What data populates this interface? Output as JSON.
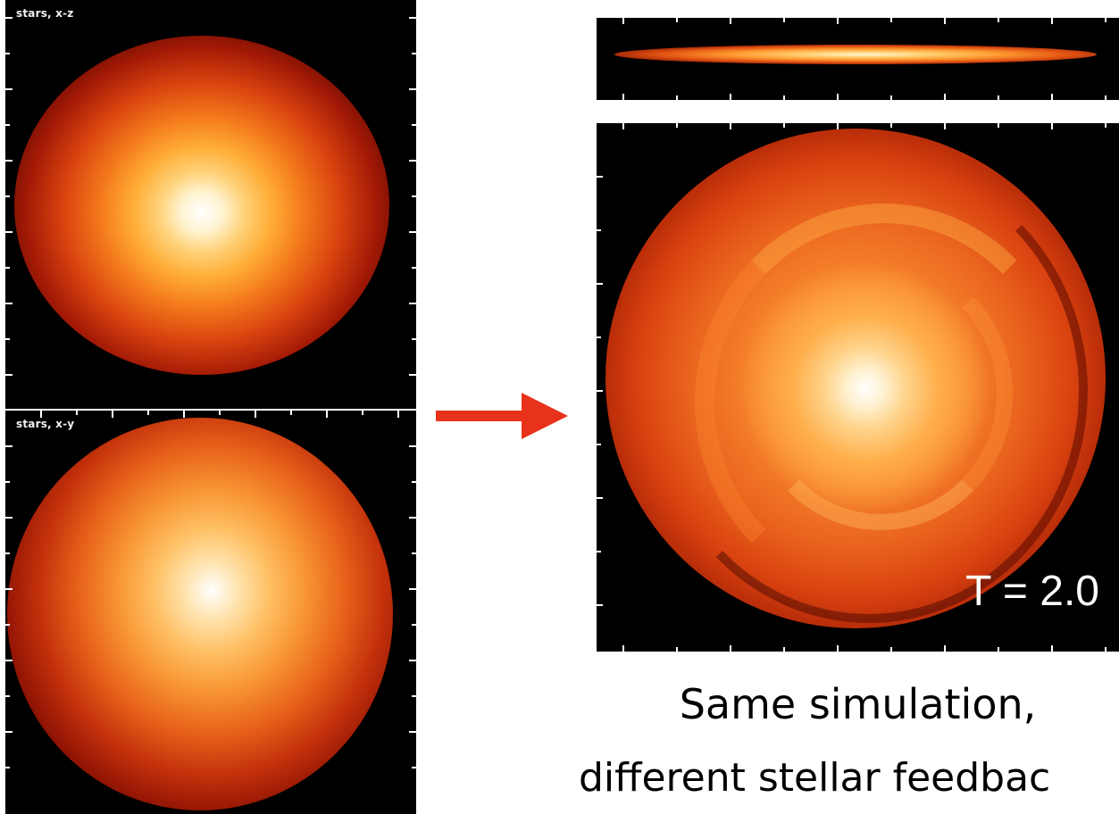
{
  "panels": {
    "top_left": {
      "label": "stars, x-z"
    },
    "bottom_left": {
      "label": "stars, x-y"
    },
    "right_main": {
      "time_label": "T = 2.0"
    }
  },
  "caption": {
    "line1": "Same simulation,",
    "line2": "different stellar feedbac"
  },
  "arrow": {
    "color": "#e8321c"
  },
  "icons": {
    "arrow": "arrow-right-icon"
  }
}
